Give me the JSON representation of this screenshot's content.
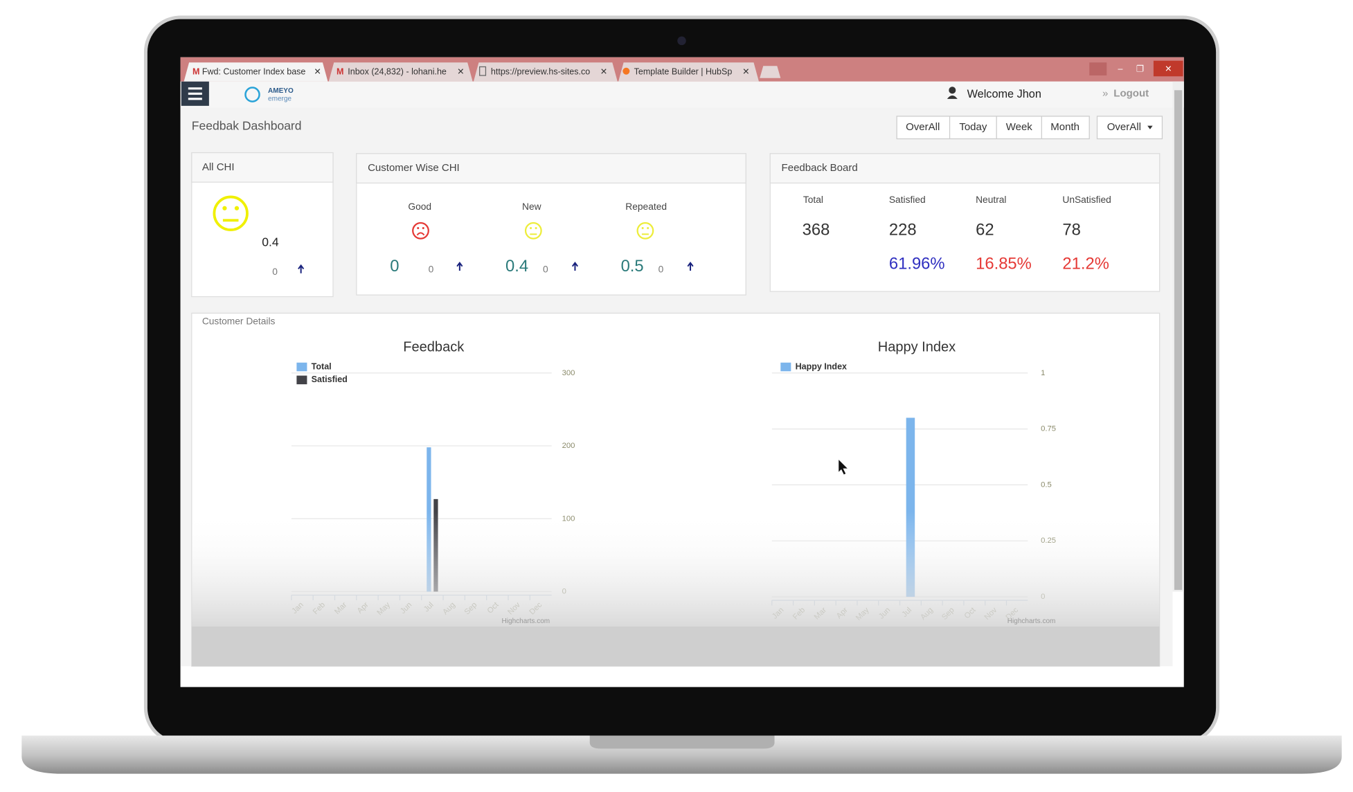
{
  "browser": {
    "tabs": [
      "Fwd: Customer Index base",
      "Inbox (24,832) - lohani.he",
      "https://preview.hs-sites.co",
      "Template Builder | HubSp"
    ]
  },
  "header": {
    "logo": "AMEYO",
    "logo_sub": "emerge",
    "welcome": "Welcome Jhon",
    "logout": "Logout"
  },
  "dashboard": {
    "title": "Feedbak Dashboard",
    "filters": [
      "OverAll",
      "Today",
      "Week",
      "Month"
    ],
    "dropdown": "OverAll"
  },
  "all_chi": {
    "title": "All CHI",
    "value": 0.4,
    "change": 0
  },
  "customer_wise_chi": {
    "title": "Customer Wise CHI",
    "groups": [
      {
        "label": "Good",
        "value": 0,
        "change": 0
      },
      {
        "label": "New",
        "value": 0.4,
        "change": 0
      },
      {
        "label": "Repeated",
        "value": 0.5,
        "change": 0
      }
    ]
  },
  "feedback_board": {
    "title": "Feedback Board",
    "columns": [
      {
        "label": "Total",
        "count": 368
      },
      {
        "label": "Satisfied",
        "count": 228,
        "percent": "61.96%"
      },
      {
        "label": "Neutral",
        "count": 62,
        "percent": "16.85%"
      },
      {
        "label": "UnSatisfied",
        "count": 78,
        "percent": "21.2%"
      }
    ]
  },
  "customer_details": {
    "title": "Customer Details",
    "credit": "Highcharts.com"
  },
  "chart_data": [
    {
      "type": "bar",
      "title": "Feedback",
      "categories": [
        "Jan",
        "Feb",
        "Mar",
        "Apr",
        "May",
        "Jun",
        "Jul",
        "Aug",
        "Sep",
        "Oct",
        "Nov",
        "Dec"
      ],
      "series": [
        {
          "name": "Total",
          "color": "#7cb5ec",
          "values": [
            0,
            0,
            0,
            0,
            0,
            0,
            198,
            0,
            0,
            0,
            0,
            0
          ]
        },
        {
          "name": "Satisfied",
          "color": "#434348",
          "values": [
            0,
            0,
            0,
            0,
            0,
            0,
            127,
            0,
            0,
            0,
            0,
            0
          ]
        }
      ],
      "ylim": [
        0,
        300
      ],
      "yticks": [
        0,
        100,
        200,
        300
      ],
      "grid": true
    },
    {
      "type": "bar",
      "title": "Happy Index",
      "categories": [
        "Jan",
        "Feb",
        "Mar",
        "Apr",
        "May",
        "Jun",
        "Jul",
        "Aug",
        "Sep",
        "Oct",
        "Nov",
        "Dec"
      ],
      "series": [
        {
          "name": "Happy Index",
          "color": "#7cb5ec",
          "values": [
            0,
            0,
            0,
            0,
            0,
            0,
            0.8,
            0,
            0,
            0,
            0,
            0
          ]
        }
      ],
      "ylim": [
        0,
        1
      ],
      "yticks": [
        0,
        0.25,
        0.5,
        0.75,
        1
      ],
      "grid": true
    }
  ]
}
